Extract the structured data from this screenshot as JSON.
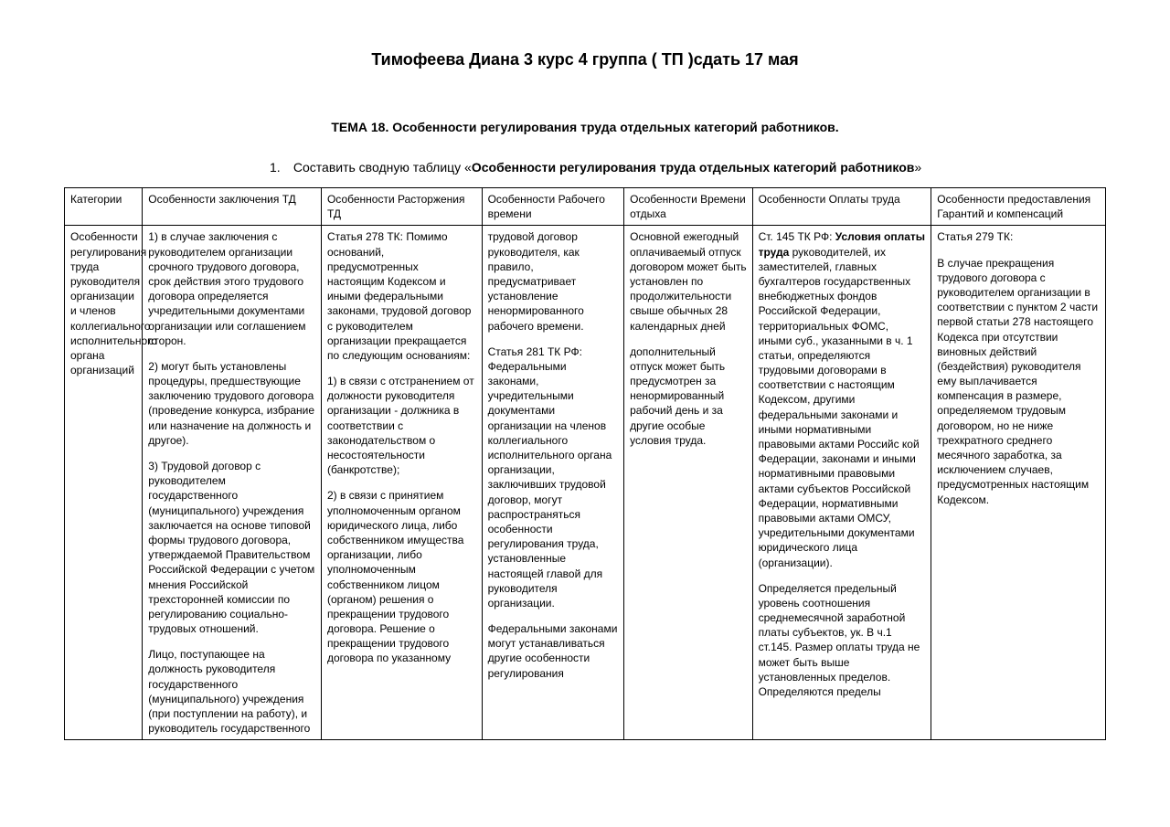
{
  "title": "Тимофеева Диана 3 курс 4 группа ( ТП )сдать 17 мая",
  "subtitle": "ТЕМА 18.  Особенности регулирования труда отдельных категорий работников.",
  "task": {
    "num": "1.",
    "lead": "Составить сводную таблицу «",
    "bold": "Особенности регулирования труда отдельных категорий работников",
    "tail": "»"
  },
  "headers": {
    "c0": "Категории",
    "c1": "Особенности заключения ТД",
    "c2": "Особенности Расторжения ТД",
    "c3": "Особенности Рабочего времени",
    "c4": "Особенности Времени отдыха",
    "c5": "Особенности Оплаты труда",
    "c6": "Особенности предоставления Гарантий и компенсаций"
  },
  "row1": {
    "category": "Особенности регулирования труда руководителя организации и членов коллегиального исполнительного органа организаций",
    "c1_p1": "1) в случае заключения с руководителем организации срочного трудового договора, срок действия этого трудового договора определяется учредительными документами организации или соглашением сторон.",
    "c1_p2": "2) могут быть установлены процедуры, предшествующие заключению трудового договора (проведение конкурса, избрание или назначение на должность и другое).",
    "c1_p3": "3) Трудовой договор с руководителем государственного (муниципального) учреждения заключается на основе типовой формы трудового договора, утверждаемой Правительством Российской Федерации с учетом мнения Российской трехсторонней комиссии по регулированию социально-трудовых отношений.",
    "c1_p4": "Лицо, поступающее на должность руководителя государственного (муниципального) учреждения (при поступлении на работу), и руководитель государственного",
    "c2_p1": "Статья 278 ТК: Помимо оснований, предусмотренных настоящим Кодексом и иными федеральными законами, трудовой договор с руководителем организации прекращается по следующим основаниям:",
    "c2_p2": "1) в связи с отстранением от должности руководителя организации - должника в соответствии с законодательством о несостоятельности (банкротстве);",
    "c2_p3": "2) в связи с принятием уполномоченным органом юридического лица, либо собственником имущества организации, либо уполномоченным собственником лицом (органом) решения о прекращении трудового договора. Решение о прекращении трудового договора по указанному",
    "c3_p1": "трудовой договор руководителя, как правило, предусматривает установление ненормированного рабочего времени.",
    "c3_p2": "Статья 281 ТК РФ: Федеральными законами, учредительными документами организации на членов коллегиального исполнительного органа организации, заключивших трудовой договор, могут распространяться особенности регулирования труда, установленные настоящей главой для руководителя организации.",
    "c3_p3": "Федеральными законами могут устанавливаться другие особенности регулирования",
    "c4_p1": "Основной ежегодный оплачиваемый отпуск договором может быть установлен по продолжительности свыше обычных 28 календарных дней",
    "c4_p2": "дополнительный отпуск может быть предусмотрен за ненормированный рабочий день и за другие особые условия труда.",
    "c5_lead": "Ст. 145 ТК РФ: ",
    "c5_bold": "Условия оплаты труда",
    "c5_rest": " руководителей, их заместителей, главных бухгалтеров государственных внебюджетных фондов Российской Федерации, территориальных ФОМС, иными суб., указанными в ч. 1 статьи, определяются трудовыми договорами в соответствии с настоящим Кодексом, другими федеральными законами и иными нормативными правовыми актами Российс кой Федерации, законами и иными нормативными правовыми актами субъектов Российской Федерации, нормативными правовыми актами ОМСУ, учредительными документами юридического лица (организации).",
    "c5_p2": "Определяется предельный уровень соотношения среднемесячной заработной платы субъектов, ук. В ч.1 ст.145. Размер оплаты труда не может быть выше установленных пределов. Определяются пределы",
    "c6_p1": "Статья 279 ТК:",
    "c6_p2": "В случае прекращения трудового договора с руководителем организации в соответствии с пунктом 2 части первой статьи 278 настоящего Кодекса при отсутствии виновных действий (бездействия) руководителя ему выплачивается компенсация в размере, определяемом трудовым договором, но не ниже трехкратного среднего месячного заработка, за исключением случаев, предусмотренных настоящим Кодексом."
  }
}
